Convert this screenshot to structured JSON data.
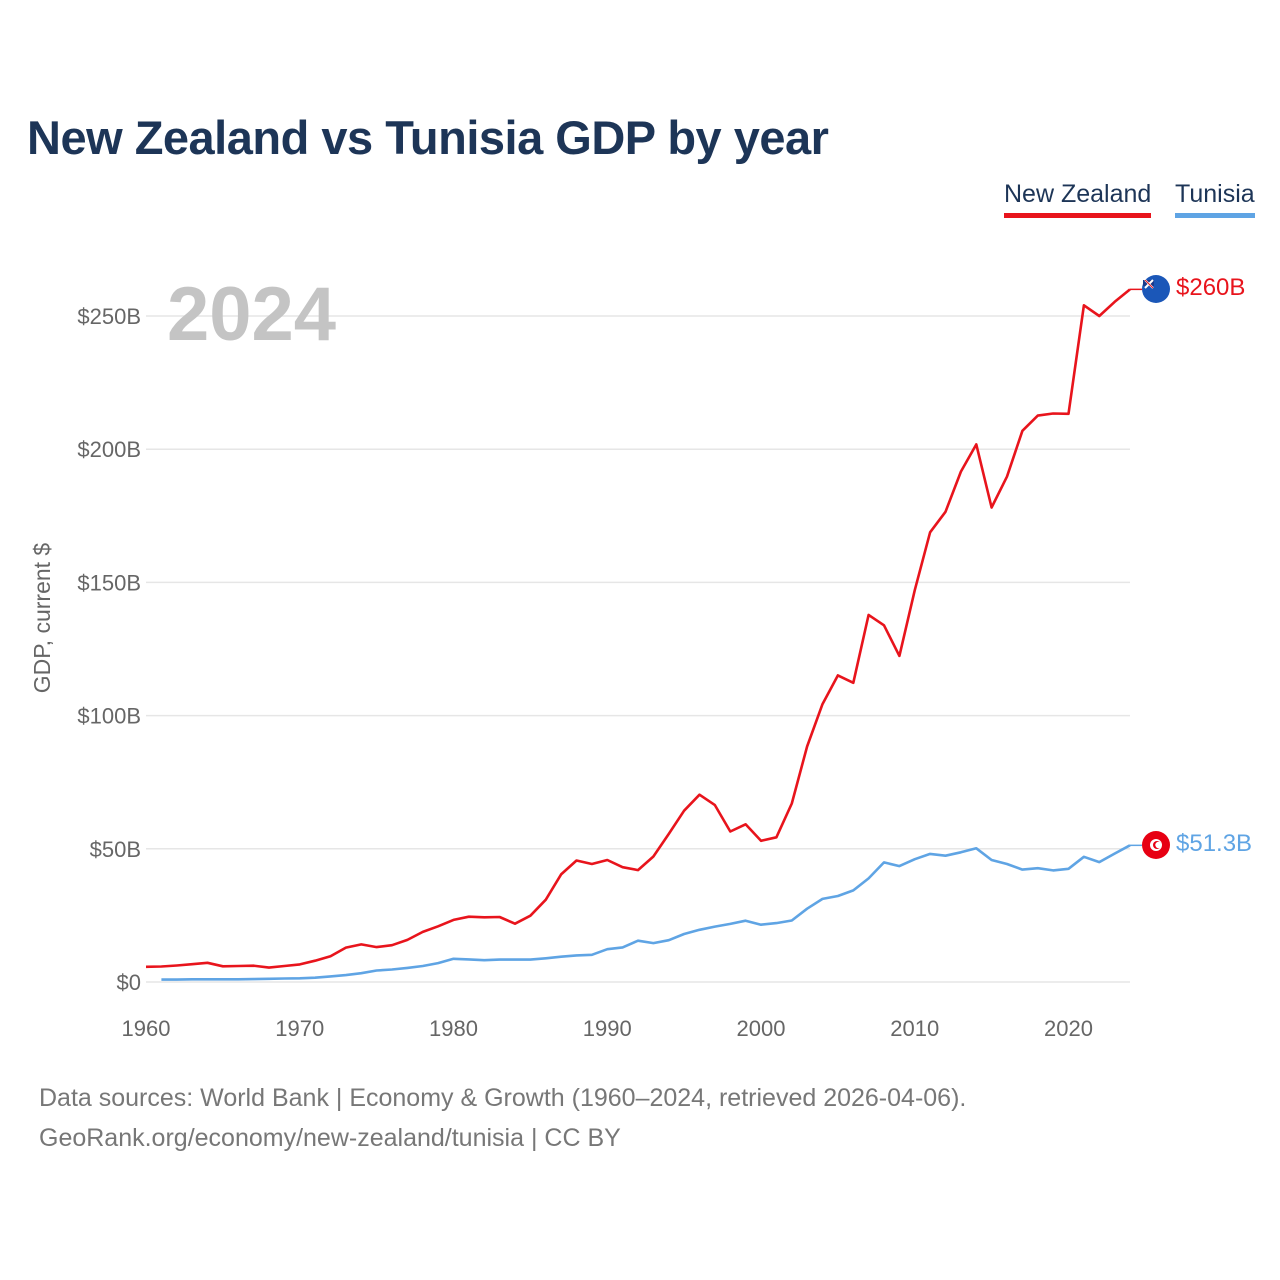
{
  "title": "New Zealand vs Tunisia GDP by year",
  "legend": [
    {
      "name": "New Zealand",
      "color": "#e8141c"
    },
    {
      "name": "Tunisia",
      "color": "#5fa4e4"
    }
  ],
  "source_line1": "Data sources: World Bank | Economy & Growth (1960–2024, retrieved 2026-04-06).",
  "source_line2": "GeoRank.org/economy/new-zealand/tunisia | CC BY",
  "chart_data": {
    "type": "line",
    "title": "New Zealand vs Tunisia GDP by year",
    "xlabel": "",
    "ylabel": "GDP, current $",
    "year_label": "2024",
    "xlim": [
      1960,
      2024
    ],
    "ylim": [
      0,
      270
    ],
    "x_ticks": [
      1960,
      1970,
      1980,
      1990,
      2000,
      2010,
      2020
    ],
    "y_ticks": [
      {
        "value": 0,
        "label": "$0"
      },
      {
        "value": 50,
        "label": "$50B"
      },
      {
        "value": 100,
        "label": "$100B"
      },
      {
        "value": 150,
        "label": "$150B"
      },
      {
        "value": 200,
        "label": "$200B"
      },
      {
        "value": 250,
        "label": "$250B"
      }
    ],
    "grid": true,
    "series": [
      {
        "name": "New Zealand",
        "color": "#e8141c",
        "end_label": "$260B",
        "start_year": 1960,
        "values": [
          5.7,
          5.8,
          6.2,
          6.7,
          7.2,
          5.9,
          6.0,
          6.1,
          5.4,
          6.0,
          6.6,
          8.0,
          9.7,
          12.9,
          14.1,
          13.1,
          13.8,
          15.8,
          18.8,
          20.9,
          23.3,
          24.5,
          24.3,
          24.4,
          21.9,
          24.9,
          30.9,
          40.4,
          45.6,
          44.3,
          45.8,
          43.1,
          42.0,
          47.1,
          55.6,
          64.3,
          70.3,
          66.4,
          56.5,
          59.2,
          53.0,
          54.3,
          67.0,
          88.4,
          104.3,
          115.1,
          112.3,
          137.8,
          133.9,
          122.4,
          147.1,
          168.8,
          176.5,
          191.6,
          201.8,
          178.1,
          189.7,
          206.9,
          212.6,
          213.4,
          213.3,
          254.0,
          250.0,
          255.3,
          260.0
        ]
      },
      {
        "name": "Tunisia",
        "color": "#5fa4e4",
        "end_label": "$51.3B",
        "start_year": 1961,
        "values": [
          0.9,
          0.9,
          1.0,
          1.0,
          1.0,
          1.0,
          1.1,
          1.2,
          1.3,
          1.4,
          1.6,
          2.1,
          2.6,
          3.3,
          4.3,
          4.7,
          5.3,
          6.0,
          7.1,
          8.7,
          8.5,
          8.2,
          8.4,
          8.4,
          8.4,
          8.9,
          9.5,
          10.0,
          10.2,
          12.3,
          13.0,
          15.5,
          14.6,
          15.7,
          18.0,
          19.6,
          20.8,
          21.8,
          23.0,
          21.5,
          22.1,
          23.1,
          27.5,
          31.2,
          32.3,
          34.4,
          38.9,
          44.9,
          43.5,
          46.1,
          48.1,
          47.4,
          48.7,
          50.2,
          45.8,
          44.3,
          42.2,
          42.7,
          41.9,
          42.5,
          47.0,
          45.0,
          48.2,
          51.3
        ]
      }
    ]
  }
}
